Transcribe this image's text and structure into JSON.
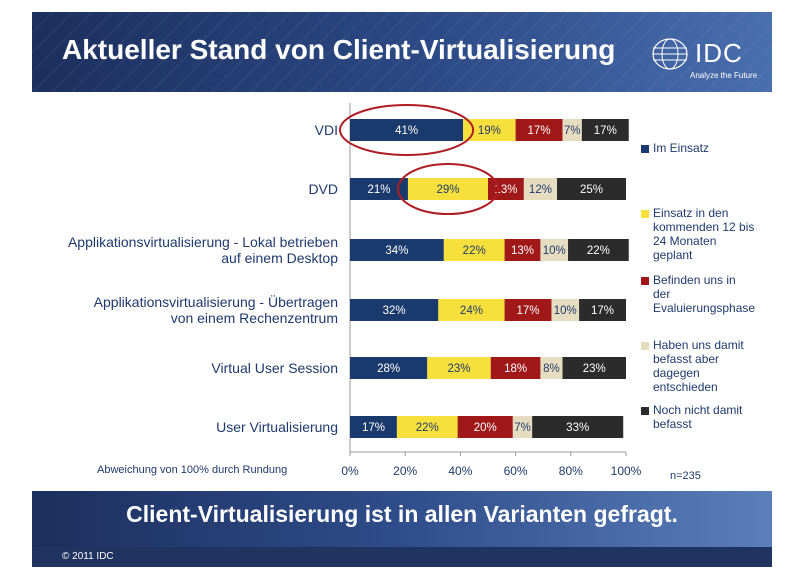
{
  "header": {
    "title": "Aktueller Stand von Client-Virtualisierung"
  },
  "logo": {
    "text": "IDC",
    "tagline": "Analyze the Future"
  },
  "chart_data": {
    "type": "bar",
    "orientation": "horizontal",
    "stacked": true,
    "categories": [
      "VDI",
      "DVD",
      "Applikationsvirtualisierung - Lokal betrieben auf einem Desktop",
      "Applikationsvirtualisierung - Übertragen von einem Rechenzentrum",
      "Virtual User Session",
      "User Virtualisierung"
    ],
    "category_lines": [
      [
        "VDI"
      ],
      [
        "DVD"
      ],
      [
        "Applikationsvirtualisierung - Lokal betrieben",
        "auf einem Desktop"
      ],
      [
        "Applikationsvirtualisierung - Übertragen",
        "von einem Rechenzentrum"
      ],
      [
        "Virtual User Session"
      ],
      [
        "User Virtualisierung"
      ]
    ],
    "series": [
      {
        "name": "Im Einsatz",
        "color": "#1a3a6e",
        "label_color": "#ffffff",
        "values": [
          41,
          21,
          34,
          32,
          28,
          17
        ]
      },
      {
        "name": "Einsatz in den kommenden 12 bis 24 Monaten geplant",
        "color": "#f7e03c",
        "label_color": "#1f3a6e",
        "values": [
          19,
          29,
          22,
          24,
          23,
          22
        ]
      },
      {
        "name": "Befinden uns in der Evaluierungsphase",
        "color": "#a01818",
        "label_color": "#ffffff",
        "values": [
          17,
          13,
          13,
          17,
          18,
          20
        ]
      },
      {
        "name": "Haben uns damit befasst aber dagegen entschieden",
        "color": "#e6dcbf",
        "label_color": "#1f3a6e",
        "values": [
          7,
          12,
          10,
          10,
          8,
          7
        ]
      },
      {
        "name": "Noch nicht damit befasst",
        "color": "#2b2b2b",
        "label_color": "#ffffff",
        "values": [
          17,
          25,
          22,
          17,
          23,
          33
        ]
      }
    ],
    "legend_lines": [
      [
        "Im Einsatz"
      ],
      [
        "Einsatz in den",
        "kommenden 12 bis",
        "24 Monaten",
        "geplant"
      ],
      [
        "Befinden uns in",
        "der",
        "Evaluierungsphase"
      ],
      [
        "Haben uns damit",
        "befasst aber",
        "dagegen",
        "entschieden"
      ],
      [
        "Noch nicht damit",
        "befasst"
      ]
    ],
    "xlim": [
      0,
      100
    ],
    "xticks": [
      "0%",
      "20%",
      "40%",
      "60%",
      "80%",
      "100%"
    ],
    "value_suffix": "%",
    "legend_position": "right",
    "highlights": [
      {
        "category_index": 0,
        "series_index": 0
      },
      {
        "category_index": 1,
        "series_index": 1
      }
    ],
    "highlight_color": "#b01c24"
  },
  "note": "Abweichung von 100% durch Rundung",
  "sample": "n=235",
  "banner": {
    "text": "Client-Virtualisierung ist in allen Varianten gefragt."
  },
  "footer": {
    "copyright": "© 2011 IDC"
  }
}
